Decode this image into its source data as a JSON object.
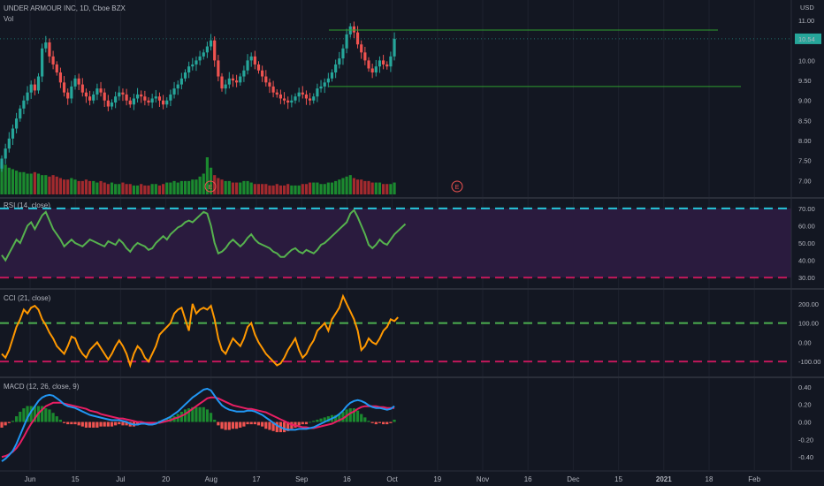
{
  "header": {
    "symbol_title": "UNDER ARMOUR INC, 1D, Cboe BZX",
    "volume_label": "Vol"
  },
  "colors": {
    "background": "#131722",
    "up": "#26a69a",
    "down": "#ef5350",
    "vol_up": "#1b8a2f",
    "vol_down": "#a32a2e",
    "level_line": "#2e9e2e",
    "rsi_line": "#56b24e",
    "rsi_band": "#2a1b3e",
    "cci_line": "#ff9800",
    "macd_line": "#2196f3",
    "signal_line": "#e91e63",
    "cyan_dash": "#26c6da",
    "pink_dash": "#c2185b",
    "green_dash": "#4caf50"
  },
  "chart_data": [
    {
      "type": "candlestick",
      "title": "UNDER ARMOUR INC, 1D, Cboe BZX",
      "axis_label": "USD",
      "yticks": [
        "11.00",
        "10.50",
        "10.00",
        "9.50",
        "9.00",
        "8.50",
        "8.00",
        "7.50",
        "7.00"
      ],
      "ylim": [
        6.7,
        11.2
      ],
      "x_labels": [
        "Jun",
        "15",
        "Jul",
        "20",
        "Aug",
        "17",
        "Sep",
        "16",
        "Oct",
        "19",
        "Nov",
        "16",
        "Dec",
        "15",
        "2021",
        "18",
        "Feb"
      ],
      "last_price_label": "10.54",
      "earnings_markers": [
        "E",
        "E"
      ],
      "levels": [
        10.76,
        9.35
      ],
      "closes": [
        7.55,
        7.8,
        8.05,
        8.3,
        8.55,
        8.8,
        9.0,
        9.2,
        9.4,
        9.25,
        9.6,
        10.3,
        10.45,
        10.1,
        9.9,
        9.7,
        9.45,
        9.2,
        9.05,
        9.35,
        9.55,
        9.4,
        9.2,
        9.1,
        9.0,
        9.15,
        9.3,
        9.2,
        9.0,
        8.85,
        8.95,
        9.1,
        9.2,
        9.15,
        9.0,
        8.9,
        9.05,
        9.15,
        9.1,
        9.0,
        8.95,
        9.05,
        9.1,
        9.0,
        8.9,
        9.0,
        9.15,
        9.3,
        9.4,
        9.55,
        9.7,
        9.85,
        9.9,
        10.0,
        10.1,
        10.2,
        10.35,
        10.5,
        10.0,
        9.6,
        9.3,
        9.4,
        9.55,
        9.5,
        9.45,
        9.6,
        9.75,
        10.0,
        10.1,
        9.9,
        9.75,
        9.6,
        9.45,
        9.35,
        9.2,
        9.15,
        9.05,
        9.0,
        8.95,
        9.0,
        9.1,
        9.2,
        9.15,
        9.05,
        9.0,
        9.1,
        9.3,
        9.35,
        9.45,
        9.55,
        9.7,
        9.9,
        10.05,
        10.3,
        10.65,
        10.85,
        10.7,
        10.4,
        10.2,
        10.0,
        9.8,
        9.7,
        9.85,
        10.0,
        9.9,
        9.85,
        10.1,
        10.54
      ],
      "volume": [
        2.2,
        2.0,
        1.8,
        1.7,
        1.6,
        1.5,
        1.5,
        1.4,
        1.4,
        1.5,
        1.4,
        1.3,
        1.3,
        1.2,
        1.3,
        1.2,
        1.1,
        1.0,
        1.0,
        1.1,
        1.0,
        0.9,
        0.9,
        1.0,
        0.9,
        0.9,
        0.8,
        0.9,
        0.8,
        0.7,
        0.8,
        0.7,
        0.7,
        0.8,
        0.7,
        0.7,
        0.6,
        0.6,
        0.7,
        0.6,
        0.6,
        0.7,
        0.7,
        0.6,
        0.7,
        0.8,
        0.8,
        0.9,
        0.8,
        0.9,
        0.9,
        0.9,
        1.0,
        1.0,
        1.2,
        1.4,
        2.5,
        1.8,
        1.3,
        1.1,
        1.0,
        0.9,
        0.9,
        0.8,
        0.8,
        0.8,
        0.9,
        0.9,
        0.8,
        0.7,
        0.7,
        0.7,
        0.7,
        0.6,
        0.6,
        0.7,
        0.6,
        0.6,
        0.7,
        0.6,
        0.6,
        0.6,
        0.7,
        0.7,
        0.8,
        0.8,
        0.8,
        0.7,
        0.7,
        0.8,
        0.8,
        0.9,
        1.0,
        1.1,
        1.2,
        1.3,
        1.1,
        1.0,
        1.0,
        0.9,
        0.9,
        0.8,
        0.8,
        0.8,
        0.7,
        0.7,
        0.7,
        0.8
      ]
    },
    {
      "type": "line",
      "title": "RSI (14, close)",
      "yticks": [
        "70.00",
        "60.00",
        "50.00",
        "40.00",
        "30.00"
      ],
      "ylim": [
        27,
        73
      ],
      "levels": [
        70,
        30
      ],
      "values": [
        43,
        40,
        44,
        48,
        52,
        50,
        55,
        60,
        62,
        58,
        62,
        66,
        68,
        63,
        58,
        55,
        52,
        48,
        50,
        52,
        50,
        49,
        48,
        50,
        52,
        51,
        50,
        49,
        48,
        51,
        50,
        49,
        52,
        50,
        47,
        45,
        48,
        50,
        49,
        48,
        46,
        47,
        50,
        52,
        54,
        52,
        55,
        57,
        59,
        60,
        62,
        63,
        62,
        64,
        66,
        68,
        67,
        60,
        50,
        44,
        45,
        47,
        50,
        52,
        50,
        48,
        50,
        53,
        55,
        52,
        50,
        49,
        48,
        47,
        45,
        44,
        42,
        42,
        44,
        46,
        47,
        45,
        44,
        46,
        45,
        44,
        46,
        49,
        50,
        52,
        54,
        56,
        58,
        60,
        62,
        67,
        69,
        65,
        60,
        55,
        49,
        47,
        49,
        52,
        50,
        49,
        52,
        55,
        57,
        59,
        61
      ]
    },
    {
      "type": "line",
      "title": "CCI (21, close)",
      "yticks": [
        "200.00",
        "100.00",
        "0.00",
        "-100.00"
      ],
      "ylim": [
        -150,
        250
      ],
      "levels": [
        100,
        -100
      ],
      "values": [
        -60,
        -80,
        -40,
        20,
        80,
        120,
        170,
        150,
        180,
        190,
        170,
        120,
        90,
        50,
        20,
        -20,
        -40,
        -60,
        -20,
        30,
        20,
        -30,
        -60,
        -80,
        -40,
        -20,
        0,
        -30,
        -60,
        -90,
        -60,
        -20,
        10,
        -20,
        -60,
        -120,
        -60,
        -20,
        -40,
        -80,
        -100,
        -60,
        -20,
        40,
        60,
        80,
        100,
        150,
        170,
        180,
        120,
        60,
        200,
        150,
        170,
        180,
        170,
        190,
        120,
        20,
        -40,
        -60,
        -20,
        20,
        0,
        -20,
        20,
        80,
        100,
        40,
        0,
        -30,
        -60,
        -80,
        -100,
        -120,
        -110,
        -80,
        -40,
        -10,
        20,
        -40,
        -80,
        -60,
        -20,
        10,
        60,
        80,
        100,
        60,
        120,
        150,
        180,
        240,
        200,
        160,
        120,
        60,
        -40,
        -20,
        20,
        0,
        -10,
        20,
        60,
        80,
        120,
        110,
        130
      ]
    },
    {
      "type": "line",
      "title": "MACD (12, 26, close, 9)",
      "yticks": [
        "0.40",
        "0.20",
        "0.00",
        "-0.20",
        "-0.40"
      ],
      "ylim": [
        -0.5,
        0.45
      ],
      "series": [
        {
          "values": [
            -0.45,
            -0.42,
            -0.38,
            -0.33,
            -0.25,
            -0.15,
            -0.05,
            0.05,
            0.12,
            0.18,
            0.24,
            0.28,
            0.3,
            0.31,
            0.3,
            0.27,
            0.24,
            0.2,
            0.18,
            0.17,
            0.16,
            0.14,
            0.12,
            0.1,
            0.08,
            0.07,
            0.06,
            0.05,
            0.04,
            0.03,
            0.02,
            0.02,
            0.02,
            0.01,
            0.0,
            -0.02,
            -0.03,
            -0.03,
            -0.02,
            -0.02,
            -0.03,
            -0.03,
            -0.02,
            0.0,
            0.02,
            0.04,
            0.06,
            0.09,
            0.12,
            0.16,
            0.2,
            0.24,
            0.28,
            0.31,
            0.34,
            0.37,
            0.38,
            0.36,
            0.3,
            0.24,
            0.19,
            0.16,
            0.14,
            0.13,
            0.12,
            0.12,
            0.12,
            0.13,
            0.13,
            0.12,
            0.1,
            0.08,
            0.05,
            0.02,
            -0.01,
            -0.04,
            -0.06,
            -0.08,
            -0.09,
            -0.09,
            -0.09,
            -0.08,
            -0.08,
            -0.08,
            -0.07,
            -0.06,
            -0.04,
            -0.02,
            0.0,
            0.02,
            0.04,
            0.06,
            0.09,
            0.13,
            0.18,
            0.22,
            0.24,
            0.25,
            0.24,
            0.22,
            0.19,
            0.17,
            0.16,
            0.16,
            0.15,
            0.14,
            0.15,
            0.18
          ]
        },
        {
          "values": [
            -0.4,
            -0.39,
            -0.37,
            -0.34,
            -0.3,
            -0.24,
            -0.17,
            -0.09,
            -0.02,
            0.04,
            0.1,
            0.14,
            0.18,
            0.2,
            0.22,
            0.22,
            0.22,
            0.21,
            0.2,
            0.19,
            0.18,
            0.17,
            0.16,
            0.15,
            0.13,
            0.12,
            0.11,
            0.09,
            0.08,
            0.07,
            0.06,
            0.05,
            0.04,
            0.04,
            0.03,
            0.02,
            0.01,
            0.0,
            0.0,
            -0.01,
            -0.01,
            -0.01,
            -0.01,
            -0.01,
            0.0,
            0.01,
            0.02,
            0.04,
            0.05,
            0.07,
            0.09,
            0.12,
            0.15,
            0.18,
            0.21,
            0.24,
            0.27,
            0.28,
            0.28,
            0.27,
            0.25,
            0.23,
            0.21,
            0.19,
            0.18,
            0.17,
            0.16,
            0.15,
            0.15,
            0.14,
            0.13,
            0.12,
            0.11,
            0.09,
            0.07,
            0.05,
            0.03,
            0.01,
            -0.01,
            -0.03,
            -0.04,
            -0.05,
            -0.06,
            -0.06,
            -0.07,
            -0.07,
            -0.06,
            -0.05,
            -0.04,
            -0.03,
            -0.02,
            0.0,
            0.02,
            0.04,
            0.07,
            0.1,
            0.12,
            0.15,
            0.17,
            0.18,
            0.18,
            0.18,
            0.18,
            0.17,
            0.17,
            0.16,
            0.16,
            0.16
          ]
        }
      ]
    }
  ]
}
